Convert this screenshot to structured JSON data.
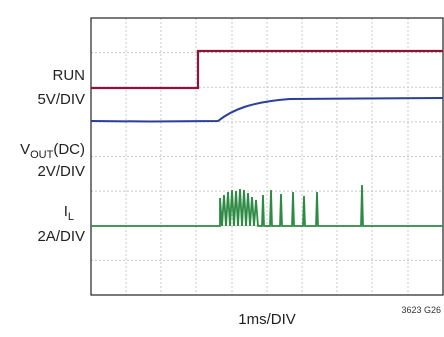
{
  "labels": {
    "run": "RUN",
    "run_scale": "5V/DIV",
    "vout": {
      "main": "V",
      "sub": "OUT",
      "rest": "(DC)"
    },
    "vout_scale": "2V/DIV",
    "il": {
      "main": "I",
      "sub": "L"
    },
    "il_scale": "2A/DIV",
    "time_scale": "1ms/DIV",
    "figure_id": "3623 G26"
  }
}
